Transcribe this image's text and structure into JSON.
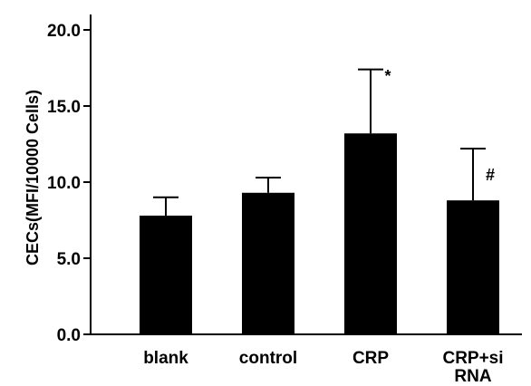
{
  "chart_data": {
    "type": "bar",
    "title": "",
    "xlabel": "",
    "ylabel": "CECs(MFI/10000 Cells)",
    "ylim": [
      0,
      20
    ],
    "yticks": [
      "0.0",
      "5.0",
      "10.0",
      "15.0",
      "20.0"
    ],
    "ytick_values": [
      0,
      5,
      10,
      15,
      20
    ],
    "categories": [
      {
        "lines": [
          "blank"
        ]
      },
      {
        "lines": [
          "control"
        ]
      },
      {
        "lines": [
          "CRP"
        ]
      },
      {
        "lines": [
          "CRP+si",
          "RNA"
        ]
      }
    ],
    "values": [
      7.8,
      9.3,
      13.2,
      8.8
    ],
    "errors": [
      1.2,
      1.0,
      4.2,
      3.4
    ],
    "annotations": [
      "",
      "",
      "*",
      "#"
    ],
    "bar_color": "#000000",
    "grid": false,
    "legend": "none"
  }
}
